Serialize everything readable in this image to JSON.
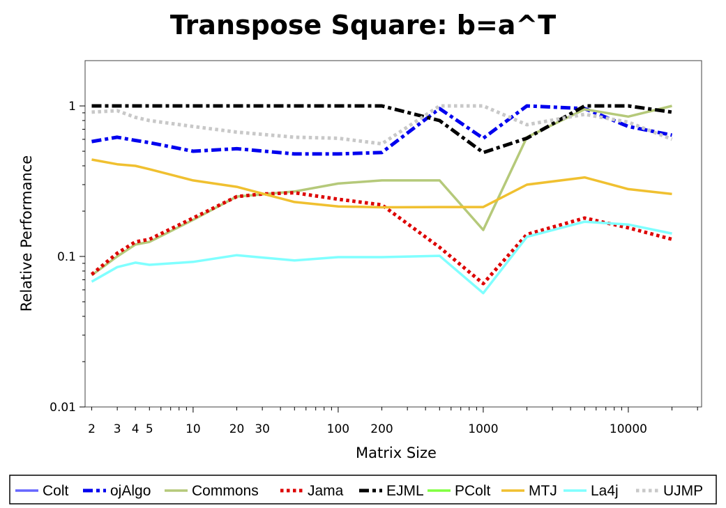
{
  "chart_data": {
    "type": "line",
    "title": "Transpose Square: b=a^T",
    "xlabel": "Matrix Size",
    "ylabel": "Relative Performance",
    "x_scale": "log",
    "y_scale": "log",
    "xlim": [
      1.8,
      32000
    ],
    "ylim": [
      0.01,
      2
    ],
    "x_ticks": [
      {
        "value": 2,
        "label": "2"
      },
      {
        "value": 3,
        "label": "3"
      },
      {
        "value": 4,
        "label": "4"
      },
      {
        "value": 5,
        "label": "5"
      },
      {
        "value": 10,
        "label": "10"
      },
      {
        "value": 20,
        "label": "20"
      },
      {
        "value": 30,
        "label": "30"
      },
      {
        "value": 100,
        "label": "100"
      },
      {
        "value": 200,
        "label": "200"
      },
      {
        "value": 1000,
        "label": "1000"
      },
      {
        "value": 10000,
        "label": "10000"
      }
    ],
    "y_ticks": [
      {
        "value": 0.01,
        "label": "0.01"
      },
      {
        "value": 0.1,
        "label": "0.1"
      },
      {
        "value": 1,
        "label": "1"
      }
    ],
    "grid": false,
    "legend_position": "bottom",
    "series": [
      {
        "name": "Colt",
        "color": "#6666ff",
        "dash": "solid",
        "x": [],
        "y": []
      },
      {
        "name": "ojAlgo",
        "color": "#0000ee",
        "dash": "dashdot",
        "x": [
          2,
          3,
          4,
          5,
          10,
          20,
          50,
          100,
          200,
          500,
          1000,
          2000,
          5000,
          10000,
          20000
        ],
        "y": [
          0.58,
          0.62,
          0.59,
          0.57,
          0.5,
          0.52,
          0.48,
          0.48,
          0.49,
          0.96,
          0.61,
          1.0,
          0.96,
          0.73,
          0.64
        ]
      },
      {
        "name": "Commons",
        "color": "#b5c97a",
        "dash": "solid",
        "x": [
          2,
          3,
          4,
          5,
          10,
          20,
          50,
          100,
          200,
          500,
          1000,
          2000,
          5000,
          10000,
          20000
        ],
        "y": [
          0.075,
          0.1,
          0.12,
          0.125,
          0.175,
          0.25,
          0.27,
          0.305,
          0.32,
          0.32,
          0.15,
          0.62,
          0.95,
          0.85,
          1.0
        ]
      },
      {
        "name": "Jama",
        "color": "#dd0000",
        "dash": "dot",
        "x": [
          2,
          3,
          4,
          5,
          10,
          20,
          30,
          50,
          100,
          200,
          500,
          1000,
          2000,
          5000,
          10000,
          20000
        ],
        "y": [
          0.076,
          0.105,
          0.125,
          0.13,
          0.18,
          0.25,
          0.26,
          0.265,
          0.24,
          0.22,
          0.115,
          0.066,
          0.14,
          0.18,
          0.155,
          0.13
        ]
      },
      {
        "name": "EJML",
        "color": "#000000",
        "dash": "dashdot",
        "x": [
          2,
          3,
          4,
          5,
          10,
          20,
          50,
          100,
          200,
          500,
          1000,
          2000,
          5000,
          10000,
          20000
        ],
        "y": [
          1.0,
          1.0,
          1.0,
          1.0,
          1.0,
          1.0,
          1.0,
          1.0,
          1.0,
          0.8,
          0.49,
          0.61,
          1.0,
          1.0,
          0.91
        ]
      },
      {
        "name": "PColt",
        "color": "#80ff40",
        "dash": "solid",
        "x": [],
        "y": []
      },
      {
        "name": "MTJ",
        "color": "#f0c030",
        "dash": "solid",
        "x": [
          2,
          3,
          4,
          5,
          10,
          20,
          50,
          100,
          200,
          500,
          1000,
          2000,
          5000,
          10000,
          20000
        ],
        "y": [
          0.44,
          0.41,
          0.4,
          0.38,
          0.32,
          0.29,
          0.23,
          0.215,
          0.212,
          0.213,
          0.213,
          0.3,
          0.335,
          0.28,
          0.26
        ]
      },
      {
        "name": "La4j",
        "color": "#80ffff",
        "dash": "solid",
        "x": [
          2,
          3,
          4,
          5,
          10,
          20,
          50,
          100,
          200,
          500,
          1000,
          2000,
          5000,
          10000,
          20000
        ],
        "y": [
          0.068,
          0.085,
          0.091,
          0.088,
          0.092,
          0.102,
          0.094,
          0.099,
          0.099,
          0.101,
          0.057,
          0.135,
          0.17,
          0.163,
          0.142
        ]
      },
      {
        "name": "UJMP",
        "color": "#c8c8c8",
        "dash": "dot",
        "x": [
          2,
          3,
          4,
          5,
          10,
          20,
          50,
          100,
          200,
          500,
          1000,
          2000,
          5000,
          10000,
          20000
        ],
        "y": [
          0.91,
          0.93,
          0.84,
          0.8,
          0.73,
          0.67,
          0.62,
          0.61,
          0.56,
          1.0,
          1.0,
          0.75,
          0.88,
          0.78,
          0.6
        ]
      }
    ]
  }
}
